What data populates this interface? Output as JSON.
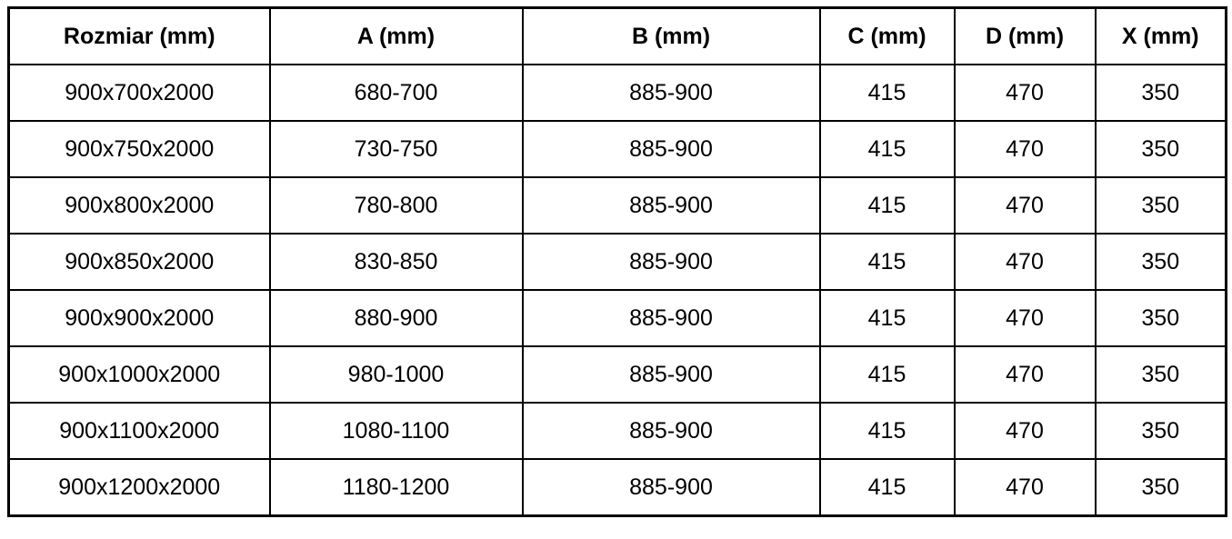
{
  "page": {
    "background_color": "#ffffff",
    "border_color": "#000000",
    "text_color": "#000000"
  },
  "chart_data": {
    "type": "table",
    "title": "",
    "columns": [
      "Rozmiar (mm)",
      "A (mm)",
      "B (mm)",
      "C (mm)",
      "D (mm)",
      "X (mm)"
    ],
    "rows": [
      [
        "900x700x2000",
        "680-700",
        "885-900",
        "415",
        "470",
        "350"
      ],
      [
        "900x750x2000",
        "730-750",
        "885-900",
        "415",
        "470",
        "350"
      ],
      [
        "900x800x2000",
        "780-800",
        "885-900",
        "415",
        "470",
        "350"
      ],
      [
        "900x850x2000",
        "830-850",
        "885-900",
        "415",
        "470",
        "350"
      ],
      [
        "900x900x2000",
        "880-900",
        "885-900",
        "415",
        "470",
        "350"
      ],
      [
        "900x1000x2000",
        "980-1000",
        "885-900",
        "415",
        "470",
        "350"
      ],
      [
        "900x1100x2000",
        "1080-1100",
        "885-900",
        "415",
        "470",
        "350"
      ],
      [
        "900x1200x2000",
        "1180-1200",
        "885-900",
        "415",
        "470",
        "350"
      ]
    ],
    "layout": {
      "grid": true,
      "header_row": true,
      "column_alignment": "center"
    }
  }
}
